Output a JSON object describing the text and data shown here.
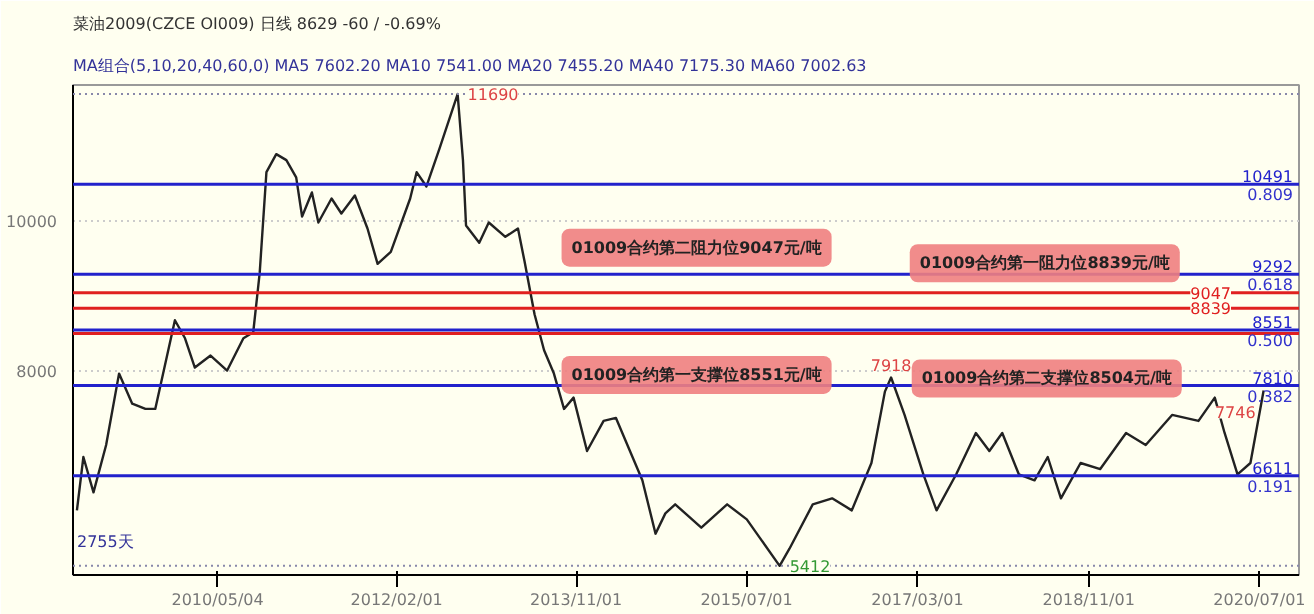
{
  "chart_data": {
    "type": "line",
    "title": "菜油2009(CZCE OI009)  日线  8629  -60 / -0.69%",
    "subtitle": "MA组合(5,10,20,40,60,0)  MA5 7602.20  MA10 7541.00  MA20 7455.20  MA40 7175.30  MA60 7002.63",
    "x": [
      "2008-12-19",
      "2009-01-11",
      "2009-02-16",
      "2009-04-02",
      "2009-05-18",
      "2009-07-04",
      "2009-08-20",
      "2009-09-24",
      "2009-12-03",
      "2010-01-08",
      "2010-02-12",
      "2010-04-09",
      "2010-06-07",
      "2010-08-04",
      "2010-09-08",
      "2010-10-01",
      "2010-10-25",
      "2010-11-29",
      "2011-01-04",
      "2011-02-08",
      "2011-03-01",
      "2011-04-05",
      "2011-04-28",
      "2011-06-14",
      "2011-07-19",
      "2011-09-05",
      "2011-10-20",
      "2011-11-25",
      "2012-01-11",
      "2012-03-20",
      "2012-04-12",
      "2012-05-17",
      "2012-07-03",
      "2012-09-05",
      "2012-09-24",
      "2012-10-05",
      "2012-11-21",
      "2012-12-25",
      "2013-02-22",
      "2013-04-08",
      "2013-05-01",
      "2013-06-06",
      "2013-07-10",
      "2013-08-14",
      "2013-09-19",
      "2013-10-23",
      "2013-12-10",
      "2014-02-07",
      "2014-03-23",
      "2014-06-25",
      "2014-08-11",
      "2014-09-15",
      "2014-10-20",
      "2015-01-21",
      "2015-04-23",
      "2015-07-02",
      "2015-10-27",
      "2015-12-01",
      "2016-02-22",
      "2016-05-01",
      "2016-07-10",
      "2016-09-18",
      "2016-11-05",
      "2016-11-27",
      "2017-01-14",
      "2017-03-22",
      "2017-05-08",
      "2017-07-17",
      "2017-09-25",
      "2017-11-12",
      "2017-12-28",
      "2018-02-25",
      "2018-04-22",
      "2018-06-08",
      "2018-07-25",
      "2018-10-03",
      "2018-12-12",
      "2019-03-14",
      "2019-05-23",
      "2019-08-25",
      "2019-11-27",
      "2020-01-24",
      "2020-02-28",
      "2020-04-14",
      "2020-05-30",
      "2020-07-16"
    ],
    "series": [
      {
        "color": "#222222",
        "values": [
          6150,
          6860,
          6390,
          7020,
          7970,
          7570,
          7500,
          7500,
          8680,
          8440,
          8050,
          8210,
          8010,
          8440,
          8520,
          9310,
          10650,
          10890,
          10810,
          10580,
          10060,
          10380,
          9980,
          10300,
          10100,
          10340,
          9900,
          9430,
          9590,
          10300,
          10650,
          10460,
          10970,
          11690,
          10810,
          9940,
          9710,
          9980,
          9790,
          9900,
          9470,
          8760,
          8280,
          7970,
          7500,
          7650,
          6940,
          7340,
          7380,
          6550,
          5840,
          6110,
          6230,
          5920,
          6230,
          6030,
          5412,
          5640,
          6230,
          6310,
          6150,
          6780,
          7730,
          7918,
          7420,
          6630,
          6150,
          6630,
          7180,
          6940,
          7180,
          6630,
          6550,
          6860,
          6310,
          6780,
          6700,
          7180,
          7020,
          7420,
          7340,
          7650,
          7180,
          6630,
          6780,
          7746
        ]
      }
    ],
    "xlim": [
      "2008-12-05",
      "2020-11-19"
    ],
    "ylim": [
      5290,
      11810
    ],
    "xticks": [
      {
        "value": "2010-05-04",
        "label": "2010/05/04"
      },
      {
        "value": "2012-02-01",
        "label": "2012/02/01"
      },
      {
        "value": "2013-11-01",
        "label": "2013/11/01"
      },
      {
        "value": "2015-07-01",
        "label": "2015/07/01"
      },
      {
        "value": "2017-03-01",
        "label": "2017/03/01"
      },
      {
        "value": "2018-11-01",
        "label": "2018/11/01"
      },
      {
        "value": "2020-07-01",
        "label": "2020/07/01"
      }
    ],
    "yticks": [
      8000,
      10000
    ],
    "grid": "y",
    "ref_lines": [
      {
        "axis": "y",
        "value": 11690,
        "label": null,
        "color": "#8888aa",
        "line_style": "dotted"
      },
      {
        "axis": "y",
        "value": 5412,
        "label": null,
        "color": "#8888aa",
        "line_style": "dotted"
      },
      {
        "axis": "y",
        "value": 10491,
        "label": "10491",
        "color": "#2222cc"
      },
      {
        "axis": "y",
        "value": 9292,
        "label": "9292",
        "color": "#2222cc"
      },
      {
        "axis": "y",
        "value": 8551,
        "label": "8551",
        "color": "#2222cc"
      },
      {
        "axis": "y",
        "value": 7810,
        "label": "7810",
        "color": "#2222cc"
      },
      {
        "axis": "y",
        "value": 6611,
        "label": "6611",
        "color": "#2222cc"
      },
      {
        "axis": "y",
        "value": 9047,
        "label": "9047",
        "color": "#e02020"
      },
      {
        "axis": "y",
        "value": 8839,
        "label": "8839",
        "color": "#e02020"
      },
      {
        "axis": "y",
        "value": 8504,
        "label": null,
        "color": "#e02020"
      }
    ],
    "annotations": [
      {
        "text": "01009合约第二阻力位9047元/吨",
        "x": "2013-10-23",
        "y": 9047
      },
      {
        "text": "01009合约第一支撑位8551元/吨",
        "x": "2013-10-23",
        "y": 8551
      },
      {
        "text": "01009合约第一阻力位8839元/吨",
        "x": "2017-06-24",
        "y": 8839
      },
      {
        "text": "01009合约第二支撑位8504元/吨",
        "x": "2017-07-01",
        "y": 8504
      },
      {
        "text": "0.809",
        "y": 10491
      },
      {
        "text": "0.618",
        "y": 9292
      },
      {
        "text": "0.500",
        "y": 8551
      },
      {
        "text": "0.382",
        "y": 7810
      },
      {
        "text": "0.191",
        "y": 6611
      },
      {
        "text": "11690",
        "x": "2012-09-05",
        "y": 11690
      },
      {
        "text": "5412",
        "x": "2015-10-27",
        "y": 5412
      },
      {
        "text": "7918",
        "x": "2016-11-27",
        "y": 7918
      },
      {
        "text": "7746",
        "x": "2020-07-16",
        "y": 7746
      },
      "2755天"
    ]
  }
}
